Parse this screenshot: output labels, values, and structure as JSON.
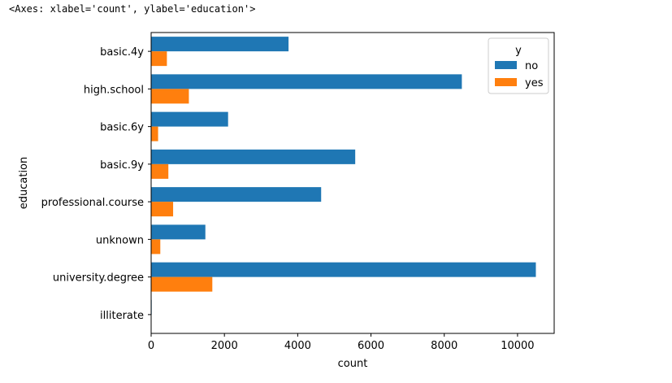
{
  "output_repr": "<Axes: xlabel='count', ylabel='education'>",
  "chart_data": {
    "type": "bar",
    "orientation": "horizontal",
    "categories": [
      "basic.4y",
      "high.school",
      "basic.6y",
      "basic.9y",
      "professional.course",
      "unknown",
      "university.degree",
      "illiterate"
    ],
    "series": [
      {
        "name": "no",
        "color": "#1f77b4",
        "values": [
          3750,
          8480,
          2100,
          5570,
          4640,
          1480,
          10500,
          15
        ]
      },
      {
        "name": "yes",
        "color": "#ff7f0e",
        "values": [
          430,
          1030,
          190,
          470,
          600,
          250,
          1670,
          4
        ]
      }
    ],
    "xlabel": "count",
    "ylabel": "education",
    "xlim": [
      0,
      11000
    ],
    "xticks": [
      0,
      2000,
      4000,
      6000,
      8000,
      10000
    ],
    "grid": false,
    "legend": {
      "title": "y",
      "placement": "top-right",
      "entries": [
        "no",
        "yes"
      ]
    }
  }
}
